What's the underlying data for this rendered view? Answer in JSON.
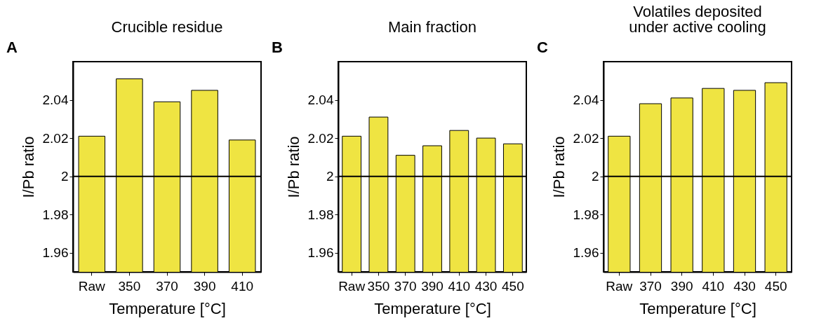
{
  "chart_data": [
    {
      "type": "bar",
      "title": "Crucible residue",
      "xlabel": "Temperature [°C]",
      "ylabel": "I/Pb ratio",
      "annotations": [
        "A"
      ],
      "categories": [
        "Raw",
        "350",
        "370",
        "390",
        "410"
      ],
      "values": [
        2.021,
        2.051,
        2.039,
        2.045,
        2.019
      ],
      "color": "#efe442",
      "ylim": [
        1.95,
        2.06
      ],
      "yticks": [
        1.96,
        1.98,
        {
          "value": 2,
          "label": "2"
        },
        2.02,
        2.04
      ],
      "ref_lines": [
        {
          "axis": "y",
          "value": 2,
          "color": "#000000"
        }
      ]
    },
    {
      "type": "bar",
      "title": "Main fraction",
      "xlabel": "Temperature [°C]",
      "ylabel": "I/Pb ratio",
      "annotations": [
        "B"
      ],
      "categories": [
        "Raw",
        "350",
        "370",
        "390",
        "410",
        "430",
        "450"
      ],
      "values": [
        2.021,
        2.031,
        2.011,
        2.016,
        2.024,
        2.02,
        2.017
      ],
      "color": "#efe442",
      "ylim": [
        1.95,
        2.06
      ],
      "yticks": [
        1.96,
        1.98,
        {
          "value": 2,
          "label": "2"
        },
        2.02,
        2.04
      ],
      "ref_lines": [
        {
          "axis": "y",
          "value": 2,
          "color": "#000000"
        }
      ]
    },
    {
      "type": "bar",
      "title": "Volatiles deposited\nunder active cooling",
      "xlabel": "Temperature [°C]",
      "ylabel": "I/Pb ratio",
      "annotations": [
        "C"
      ],
      "categories": [
        "Raw",
        "370",
        "390",
        "410",
        "430",
        "450"
      ],
      "values": [
        2.021,
        2.038,
        2.041,
        2.046,
        2.045,
        2.049
      ],
      "color": "#efe442",
      "ylim": [
        1.95,
        2.06
      ],
      "yticks": [
        1.96,
        1.98,
        {
          "value": 2,
          "label": "2"
        },
        2.02,
        2.04
      ],
      "ref_lines": [
        {
          "axis": "y",
          "value": 2,
          "color": "#000000"
        }
      ]
    }
  ]
}
